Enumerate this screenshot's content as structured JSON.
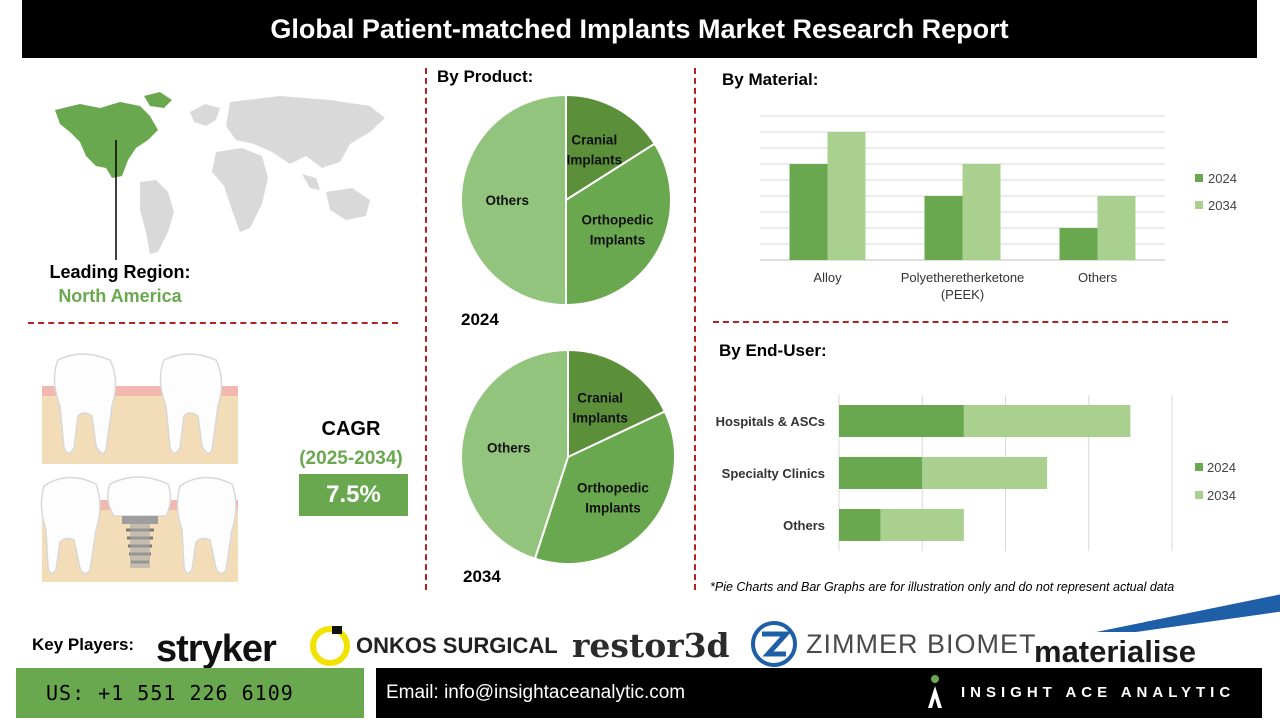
{
  "header": {
    "title": "Global Patient-matched Implants Market Research Report"
  },
  "region": {
    "label": "Leading Region:",
    "value": "North America"
  },
  "cagr": {
    "label": "CAGR",
    "period": "(2025-2034)",
    "value": "7.5%"
  },
  "product": {
    "title": "By Product:",
    "year_2024": "2024",
    "year_2034": "2034"
  },
  "material": {
    "title": "By Material:"
  },
  "enduser": {
    "title": "By End-User:"
  },
  "disclaimer": "*Pie Charts and Bar Graphs are for illustration only and do not represent actual data",
  "key_players": {
    "label": "Key Players:",
    "logos": [
      "stryker",
      "ONKOS SURGICAL",
      "restor3d",
      "ZIMMER BIOMET",
      "materialise"
    ]
  },
  "footer": {
    "phone": "US: +1 551 226 6109",
    "email": "Email: info@insightaceanalytic.com",
    "brand": "INSIGHT ACE ANALYTIC"
  },
  "colors": {
    "dark_green": "#5b8f3a",
    "mid_green": "#6aa84f",
    "light_green": "#93c47d",
    "pale_green": "#a9d08e",
    "accent_red": "#b22222"
  },
  "chart_data": [
    {
      "type": "pie",
      "title": "By Product:",
      "year": "2024",
      "labels": [
        "Cranial Implants",
        "Orthopedic Implants",
        "Others"
      ],
      "label_lines": [
        [
          "Cranial",
          "Implants"
        ],
        [
          "Orthopedic",
          "Implants"
        ],
        [
          "Others"
        ]
      ],
      "values": [
        16,
        34,
        50
      ],
      "colors": [
        "#5b8f3a",
        "#6aa84f",
        "#93c47d"
      ]
    },
    {
      "type": "pie",
      "title": "By Product:",
      "year": "2034",
      "labels": [
        "Cranial Implants",
        "Orthopedic Implants",
        "Others"
      ],
      "label_lines": [
        [
          "Cranial",
          "Implants"
        ],
        [
          "Orthopedic",
          "Implants"
        ],
        [
          "Others"
        ]
      ],
      "values": [
        18,
        37,
        45
      ],
      "colors": [
        "#5b8f3a",
        "#6aa84f",
        "#93c47d"
      ]
    },
    {
      "type": "bar",
      "title": "By Material:",
      "categories": [
        "Alloy",
        "Polyetheretherketone (PEEK)",
        "Others"
      ],
      "category_lines": [
        [
          "Alloy"
        ],
        [
          "Polyetheretherketone",
          "(PEEK)"
        ],
        [
          "Others"
        ]
      ],
      "series": [
        {
          "name": "2024",
          "values": [
            6,
            4,
            2
          ],
          "color": "#6aa84f"
        },
        {
          "name": "2034",
          "values": [
            8,
            6,
            4
          ],
          "color": "#a9d08e"
        }
      ],
      "ylim": [
        0,
        9
      ],
      "grid": true,
      "legend": "right"
    },
    {
      "type": "bar",
      "orientation": "horizontal",
      "stacked": true,
      "title": "By End-User:",
      "categories": [
        "Hospitals & ASCs",
        "Specialty Clinics",
        "Others"
      ],
      "series": [
        {
          "name": "2024",
          "values": [
            3,
            2,
            1
          ],
          "color": "#6aa84f"
        },
        {
          "name": "2034",
          "values": [
            4,
            3,
            2
          ],
          "color": "#a9d08e"
        }
      ],
      "xlim": [
        0,
        8
      ],
      "grid": true,
      "legend": "right"
    }
  ]
}
